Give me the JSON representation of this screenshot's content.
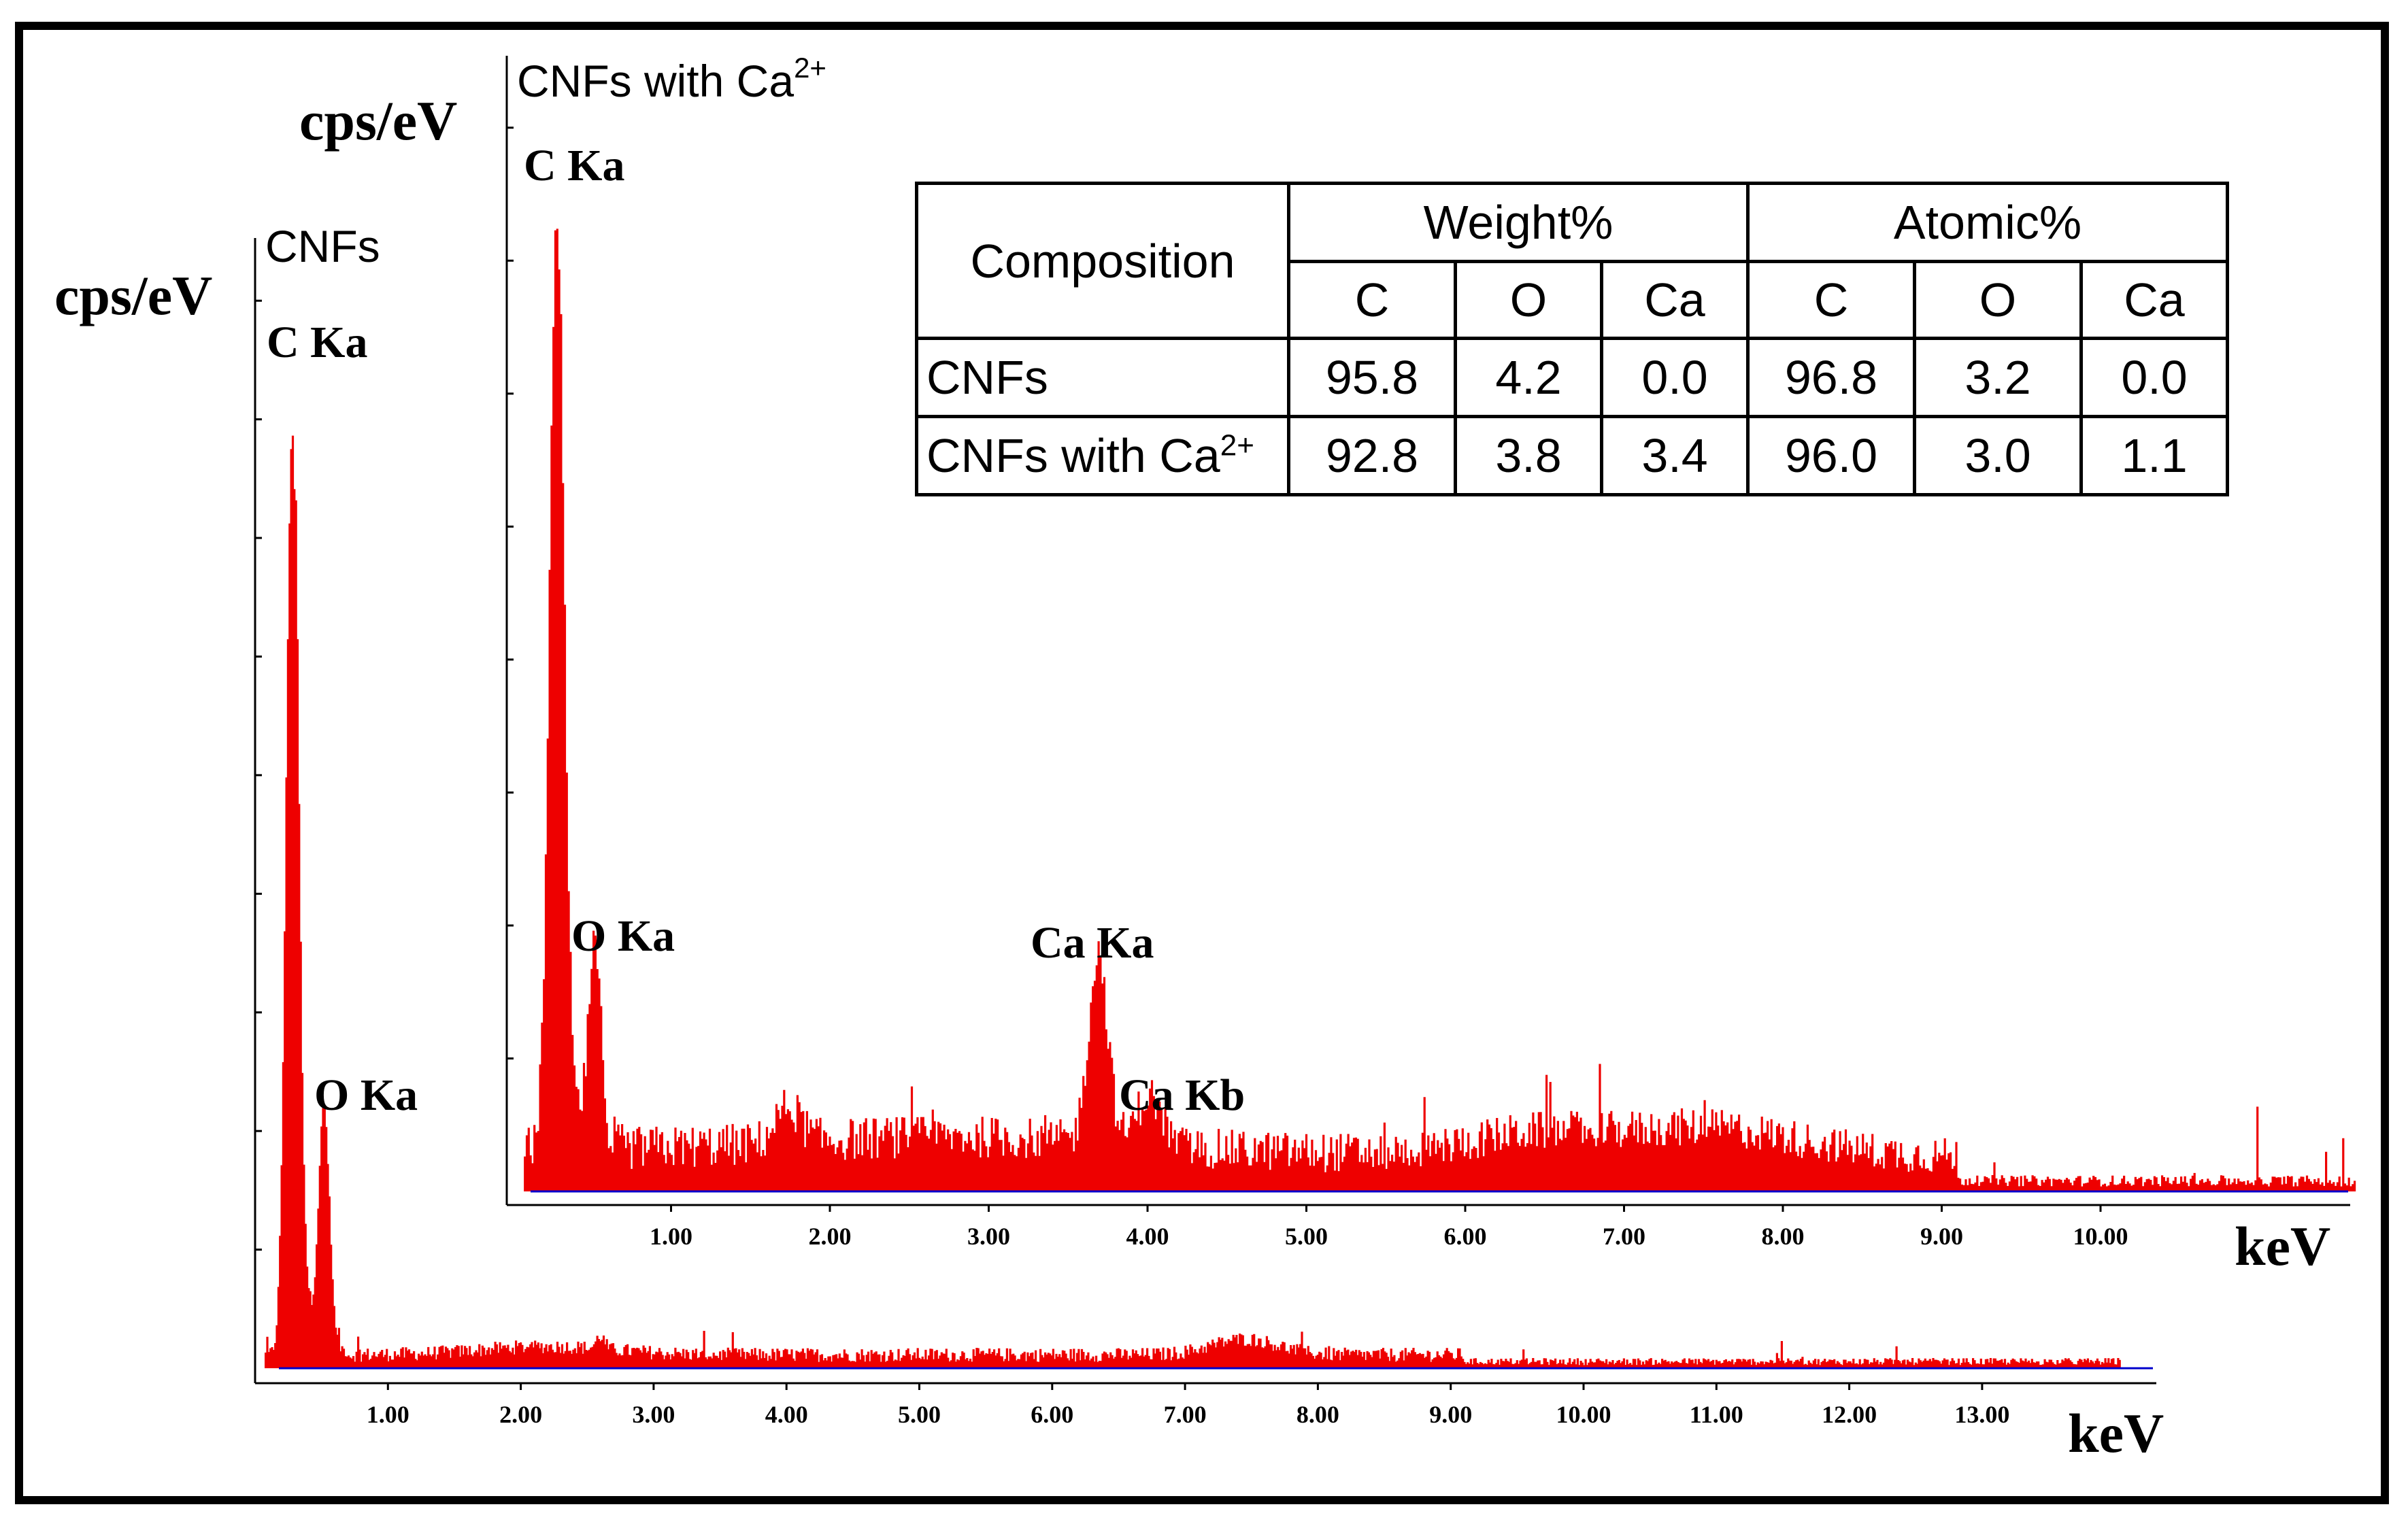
{
  "chart_data": [
    {
      "type": "bar",
      "title": "CNFs",
      "xlabel": "keV",
      "ylabel": "cps/eV",
      "xlim": [
        0.0,
        14.0
      ],
      "ylim": [
        0,
        100
      ],
      "x_ticks": [
        "1.00",
        "2.00",
        "3.00",
        "4.00",
        "5.00",
        "6.00",
        "7.00",
        "8.00",
        "9.00",
        "10.00",
        "11.00",
        "12.00",
        "13.00"
      ],
      "y_ticks_count": 9,
      "color": "#ee0000",
      "peaks": [
        {
          "label": "C Ka",
          "keV": 0.28,
          "height": 88
        },
        {
          "label": "O Ka",
          "keV": 0.52,
          "height": 22
        }
      ],
      "background_level": 1.5
    },
    {
      "type": "bar",
      "title": "CNFs with Ca",
      "title_sup": "2+",
      "xlabel": "keV",
      "ylabel": "cps/eV",
      "xlim": [
        0.0,
        11.6
      ],
      "ylim": [
        0,
        100
      ],
      "x_ticks": [
        "1.00",
        "2.00",
        "3.00",
        "4.00",
        "5.00",
        "6.00",
        "7.00",
        "8.00",
        "9.00",
        "10.00"
      ],
      "y_ticks_count": 8,
      "color": "#ee0000",
      "peaks": [
        {
          "label": "C Ka",
          "keV": 0.28,
          "height": 92
        },
        {
          "label": "O Ka",
          "keV": 0.52,
          "height": 19
        },
        {
          "label": "Ca Ka",
          "keV": 3.69,
          "height": 19
        },
        {
          "label": "Ca Kb",
          "keV": 4.01,
          "height": 5
        }
      ],
      "background_level": 5
    }
  ],
  "table": {
    "corner": "Composition",
    "group_weight": "Weight%",
    "group_atomic": "Atomic%",
    "sub_headers": [
      "C",
      "O",
      "Ca",
      "C",
      "O",
      "Ca"
    ],
    "rows": [
      {
        "label": "CNFs",
        "label_sup": "",
        "values": [
          "95.8",
          "4.2",
          "0.0",
          "96.8",
          "3.2",
          "0.0"
        ]
      },
      {
        "label": "CNFs with Ca",
        "label_sup": "2+",
        "values": [
          "92.8",
          "3.8",
          "3.4",
          "96.0",
          "3.0",
          "1.1"
        ]
      }
    ]
  },
  "axis_line_color": "#0000cc"
}
